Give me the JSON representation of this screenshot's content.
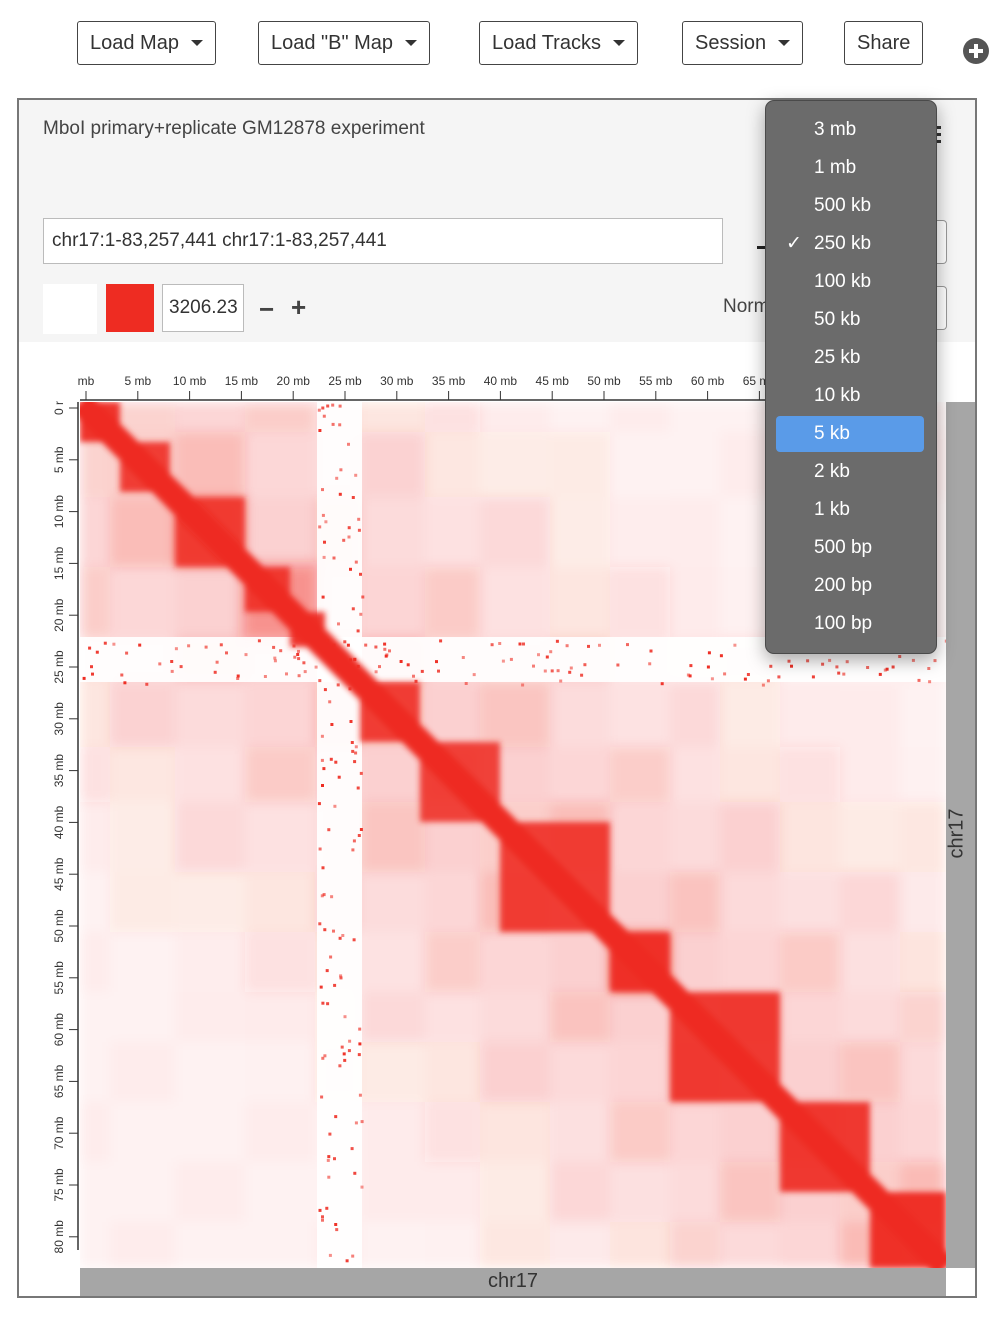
{
  "toolbar": {
    "load_map": "Load Map",
    "load_b_map": "Load \"B\" Map",
    "load_tracks": "Load Tracks",
    "session": "Session",
    "share": "Share"
  },
  "panel": {
    "title": "MboI primary+replicate GM12878 experiment",
    "locus": "chr17:1-83,257,441 chr17:1-83,257,441",
    "color_max": "3206.23",
    "normalization_label": "Norm"
  },
  "ruler": {
    "x_ticks": [
      "mb",
      "5 mb",
      "10 mb",
      "15 mb",
      "20 mb",
      "25 mb",
      "30 mb",
      "35 mb",
      "40 mb",
      "45 mb",
      "50 mb",
      "55 mb",
      "60 mb",
      "65 mb"
    ],
    "y_ticks": [
      "0 r",
      "5 mb",
      "10 mb",
      "15 mb",
      "20 mb",
      "25 mb",
      "30 mb",
      "35 mb",
      "40 mb",
      "45 mb",
      "50 mb",
      "55 mb",
      "60 mb",
      "65 mb",
      "70 mb",
      "75 mb",
      "80 mb"
    ]
  },
  "chromosome": {
    "x": "chr17",
    "y": "chr17"
  },
  "resolution_menu": {
    "selected": "250 kb",
    "highlighted": "5 kb",
    "options": [
      "3 mb",
      "1 mb",
      "500 kb",
      "250 kb",
      "100 kb",
      "50 kb",
      "25 kb",
      "10 kb",
      "5 kb",
      "2 kb",
      "1 kb",
      "500 bp",
      "200 bp",
      "100 bp"
    ]
  },
  "icons": {
    "add_browser": "plus-circle-icon",
    "menu": "hamburger-icon",
    "check": "checkmark-icon"
  },
  "colors": {
    "contact": "#ee2c22",
    "menu_bg": "#6b6b6b",
    "menu_highlight": "#5a9be8",
    "chrom_bar": "#a6a6a6"
  }
}
